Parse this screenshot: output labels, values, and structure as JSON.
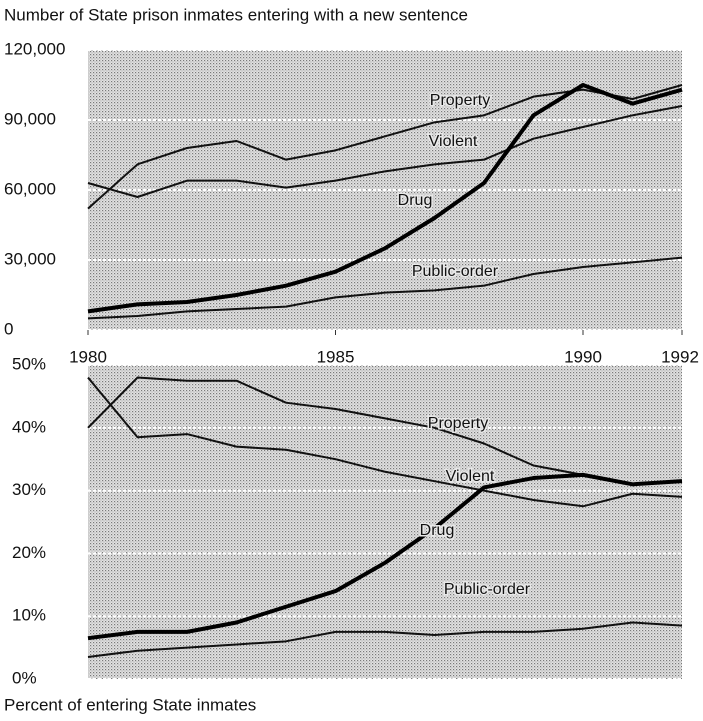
{
  "chart_data": [
    {
      "type": "line",
      "title": "Number of State prison inmates entering with a new sentence",
      "x": [
        1980,
        1981,
        1982,
        1983,
        1984,
        1985,
        1986,
        1987,
        1988,
        1989,
        1990,
        1991,
        1992
      ],
      "xlim": [
        1980,
        1992
      ],
      "xticks": [
        1980,
        1985,
        1990,
        1992
      ],
      "ylim": [
        0,
        120000
      ],
      "yticks": [
        0,
        {
          "value": 30000,
          "label": "30,000"
        },
        {
          "value": 60000,
          "label": "60,000"
        },
        {
          "value": 90000,
          "label": "90,000"
        },
        {
          "value": 120000,
          "label": "120,000"
        }
      ],
      "grid": true,
      "series": [
        {
          "name": "Property",
          "color": "#111111",
          "values": [
            52000,
            71000,
            78000,
            81000,
            73000,
            77000,
            83000,
            89000,
            92000,
            100000,
            103000,
            99000,
            105000
          ]
        },
        {
          "name": "Violent",
          "color": "#111111",
          "values": [
            63000,
            57000,
            64000,
            64000,
            61000,
            64000,
            68000,
            71000,
            73000,
            82000,
            87000,
            92000,
            96000
          ]
        },
        {
          "name": "Drug",
          "color": "#000000",
          "values": [
            8000,
            11000,
            12000,
            15000,
            19000,
            25000,
            35000,
            48000,
            63000,
            92000,
            105000,
            97000,
            103000
          ]
        },
        {
          "name": "Public-order",
          "color": "#111111",
          "values": [
            5000,
            6000,
            8000,
            9000,
            10000,
            14000,
            16000,
            17000,
            19000,
            24000,
            27000,
            29000,
            31000
          ]
        }
      ]
    },
    {
      "type": "line",
      "title": "Percent of entering State inmates",
      "x": [
        1980,
        1981,
        1982,
        1983,
        1984,
        1985,
        1986,
        1987,
        1988,
        1989,
        1990,
        1991,
        1992
      ],
      "xlim": [
        1980,
        1992
      ],
      "ylim": [
        0,
        50
      ],
      "yticks": [
        {
          "value": 0,
          "label": "0%"
        },
        {
          "value": 10,
          "label": "10%"
        },
        {
          "value": 20,
          "label": "20%"
        },
        {
          "value": 30,
          "label": "30%"
        },
        {
          "value": 40,
          "label": "40%"
        },
        {
          "value": 50,
          "label": "50%"
        }
      ],
      "grid": true,
      "series": [
        {
          "name": "Property",
          "color": "#111111",
          "values": [
            40,
            48,
            47.5,
            47.5,
            44,
            43,
            41.5,
            40,
            37.5,
            34,
            32.5,
            31,
            31.5
          ]
        },
        {
          "name": "Violent",
          "color": "#111111",
          "values": [
            48,
            38.5,
            39,
            37,
            36.5,
            35,
            33,
            31.5,
            30,
            28.5,
            27.5,
            29.5,
            29
          ]
        },
        {
          "name": "Drug",
          "color": "#000000",
          "values": [
            6.5,
            7.5,
            7.5,
            9,
            11.5,
            14,
            18.5,
            24,
            30.5,
            32,
            32.5,
            31,
            31.5
          ]
        },
        {
          "name": "Public-order",
          "color": "#111111",
          "values": [
            3.5,
            4.5,
            5,
            5.5,
            6,
            7.5,
            7.5,
            7,
            7.5,
            7.5,
            8,
            9,
            8.5
          ]
        }
      ]
    }
  ]
}
